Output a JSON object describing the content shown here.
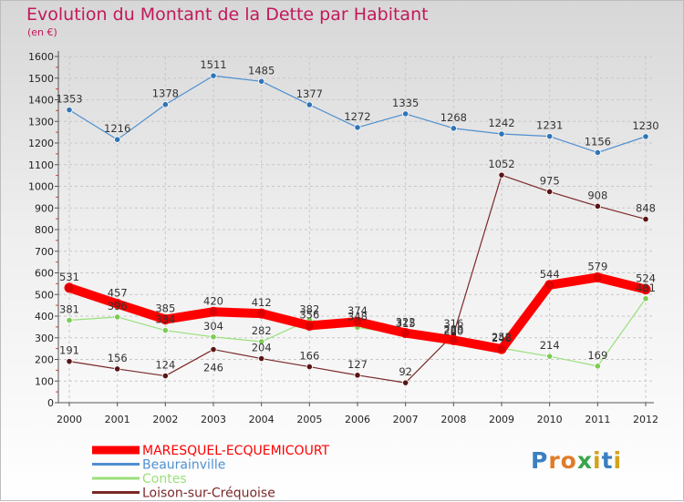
{
  "chart_data": {
    "type": "line",
    "title": "Evolution du Montant de la Dette par Habitant",
    "subtitle": "(en €)",
    "xlabel": "",
    "ylabel": "",
    "categories": [
      "2000",
      "2001",
      "2002",
      "2003",
      "2004",
      "2005",
      "2006",
      "2007",
      "2008",
      "2009",
      "2010",
      "2011",
      "2012"
    ],
    "ylim": [
      0,
      1600
    ],
    "yticks": [
      0,
      100,
      200,
      300,
      400,
      500,
      600,
      700,
      800,
      900,
      1000,
      1100,
      1200,
      1300,
      1400,
      1500,
      1600
    ],
    "grid": true,
    "legend_position": "bottom-left",
    "series": [
      {
        "name": "MARESQUEL-ECQUEMICOURT",
        "color": "#ff0000",
        "values": [
          531,
          457,
          385,
          420,
          412,
          356,
          374,
          322,
          289,
          248,
          544,
          579,
          524
        ],
        "labels": [
          "531",
          "457",
          "385",
          "420",
          "412",
          "356",
          "374",
          "322",
          "289",
          "248",
          "544",
          "579",
          "524"
        ],
        "label_dy": [
          -8,
          -8,
          -8,
          -8,
          -8,
          -8,
          -8,
          -8,
          -8,
          -8,
          -8,
          -8,
          -8
        ]
      },
      {
        "name": "Beaurainville",
        "color": "#4f8fcf",
        "values": [
          1353,
          1216,
          1378,
          1511,
          1485,
          1377,
          1272,
          1335,
          1268,
          1242,
          1231,
          1156,
          1230
        ],
        "labels": [
          "1353",
          "1216",
          "1378",
          "1511",
          "1485",
          "1377",
          "1272",
          "1335",
          "1268",
          "1242",
          "1231",
          "1156",
          "1230"
        ],
        "label_dy": [
          -8,
          -8,
          -8,
          -8,
          -8,
          -8,
          -8,
          -8,
          -8,
          -8,
          -8,
          -8,
          -8
        ]
      },
      {
        "name": "Contes",
        "color": "#99e07a",
        "values": [
          381,
          396,
          334,
          304,
          282,
          382,
          348,
          315,
          280,
          252,
          214,
          169,
          481
        ],
        "labels": [
          "381",
          "396",
          "334",
          "304",
          "282",
          "382",
          "348",
          "315",
          "280",
          "252",
          "214",
          "169",
          "481"
        ],
        "label_dy": [
          -8,
          -8,
          -8,
          -8,
          -8,
          -8,
          -8,
          -8,
          -8,
          -8,
          -8,
          -8,
          -8
        ]
      },
      {
        "name": "Loison-sur-Créquoise",
        "color": "#7b2828",
        "values": [
          191,
          156,
          124,
          246,
          204,
          166,
          127,
          92,
          316,
          1052,
          975,
          908,
          848
        ],
        "labels": [
          "191",
          "156",
          "124",
          "246",
          "204",
          "166",
          "127",
          "92",
          "316",
          "1052",
          "975",
          "908",
          "848"
        ],
        "label_dy": [
          -8,
          -8,
          -8,
          24,
          -8,
          -8,
          -8,
          -8,
          -8,
          -8,
          -8,
          -8,
          -8
        ]
      }
    ]
  },
  "legend": {
    "items": [
      {
        "label": "MARESQUEL-ECQUEMICOURT",
        "color": "#ff0000"
      },
      {
        "label": "Beaurainville",
        "color": "#4f8fcf"
      },
      {
        "label": "Contes",
        "color": "#99e07a"
      },
      {
        "label": "Loison-sur-Créquoise",
        "color": "#7b2828"
      }
    ]
  },
  "brand": {
    "letters": [
      {
        "char": "P",
        "color": "#3a7fc0"
      },
      {
        "char": "r",
        "color": "#e07b2a"
      },
      {
        "char": "o",
        "color": "#e07b2a"
      },
      {
        "char": "x",
        "color": "#3aa54a"
      },
      {
        "char": "i",
        "color": "#d6a21c"
      },
      {
        "char": "t",
        "color": "#3a7fc0"
      },
      {
        "char": "i",
        "color": "#d6a21c"
      }
    ]
  }
}
